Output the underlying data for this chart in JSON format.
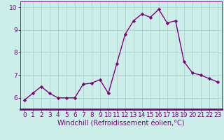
{
  "x": [
    0,
    1,
    2,
    3,
    4,
    5,
    6,
    7,
    8,
    9,
    10,
    11,
    12,
    13,
    14,
    15,
    16,
    17,
    18,
    19,
    20,
    21,
    22,
    23
  ],
  "y": [
    5.9,
    6.2,
    6.5,
    6.2,
    6.0,
    6.0,
    6.0,
    6.6,
    6.65,
    6.8,
    6.2,
    7.5,
    8.8,
    9.4,
    9.7,
    9.55,
    9.9,
    9.3,
    9.4,
    7.6,
    7.1,
    7.0,
    6.85,
    6.7
  ],
  "line_color": "#800080",
  "marker": "D",
  "marker_size": 2.2,
  "background_color": "#cceee8",
  "grid_color": "#aad8d2",
  "xlabel": "Windchill (Refroidissement éolien,°C)",
  "xlim": [
    -0.5,
    23.5
  ],
  "ylim": [
    5.5,
    10.25
  ],
  "yticks": [
    6,
    7,
    8,
    9,
    10
  ],
  "xticks": [
    0,
    1,
    2,
    3,
    4,
    5,
    6,
    7,
    8,
    9,
    10,
    11,
    12,
    13,
    14,
    15,
    16,
    17,
    18,
    19,
    20,
    21,
    22,
    23
  ],
  "xtick_labels": [
    "0",
    "1",
    "2",
    "3",
    "4",
    "5",
    "6",
    "7",
    "8",
    "9",
    "10",
    "11",
    "12",
    "13",
    "14",
    "15",
    "16",
    "17",
    "18",
    "19",
    "20",
    "21",
    "22",
    "23"
  ],
  "tick_fontsize": 6.5,
  "xlabel_fontsize": 7.0,
  "line_width": 1.0,
  "spine_color": "#800080",
  "axis_bg_bottom_color": "#800080"
}
